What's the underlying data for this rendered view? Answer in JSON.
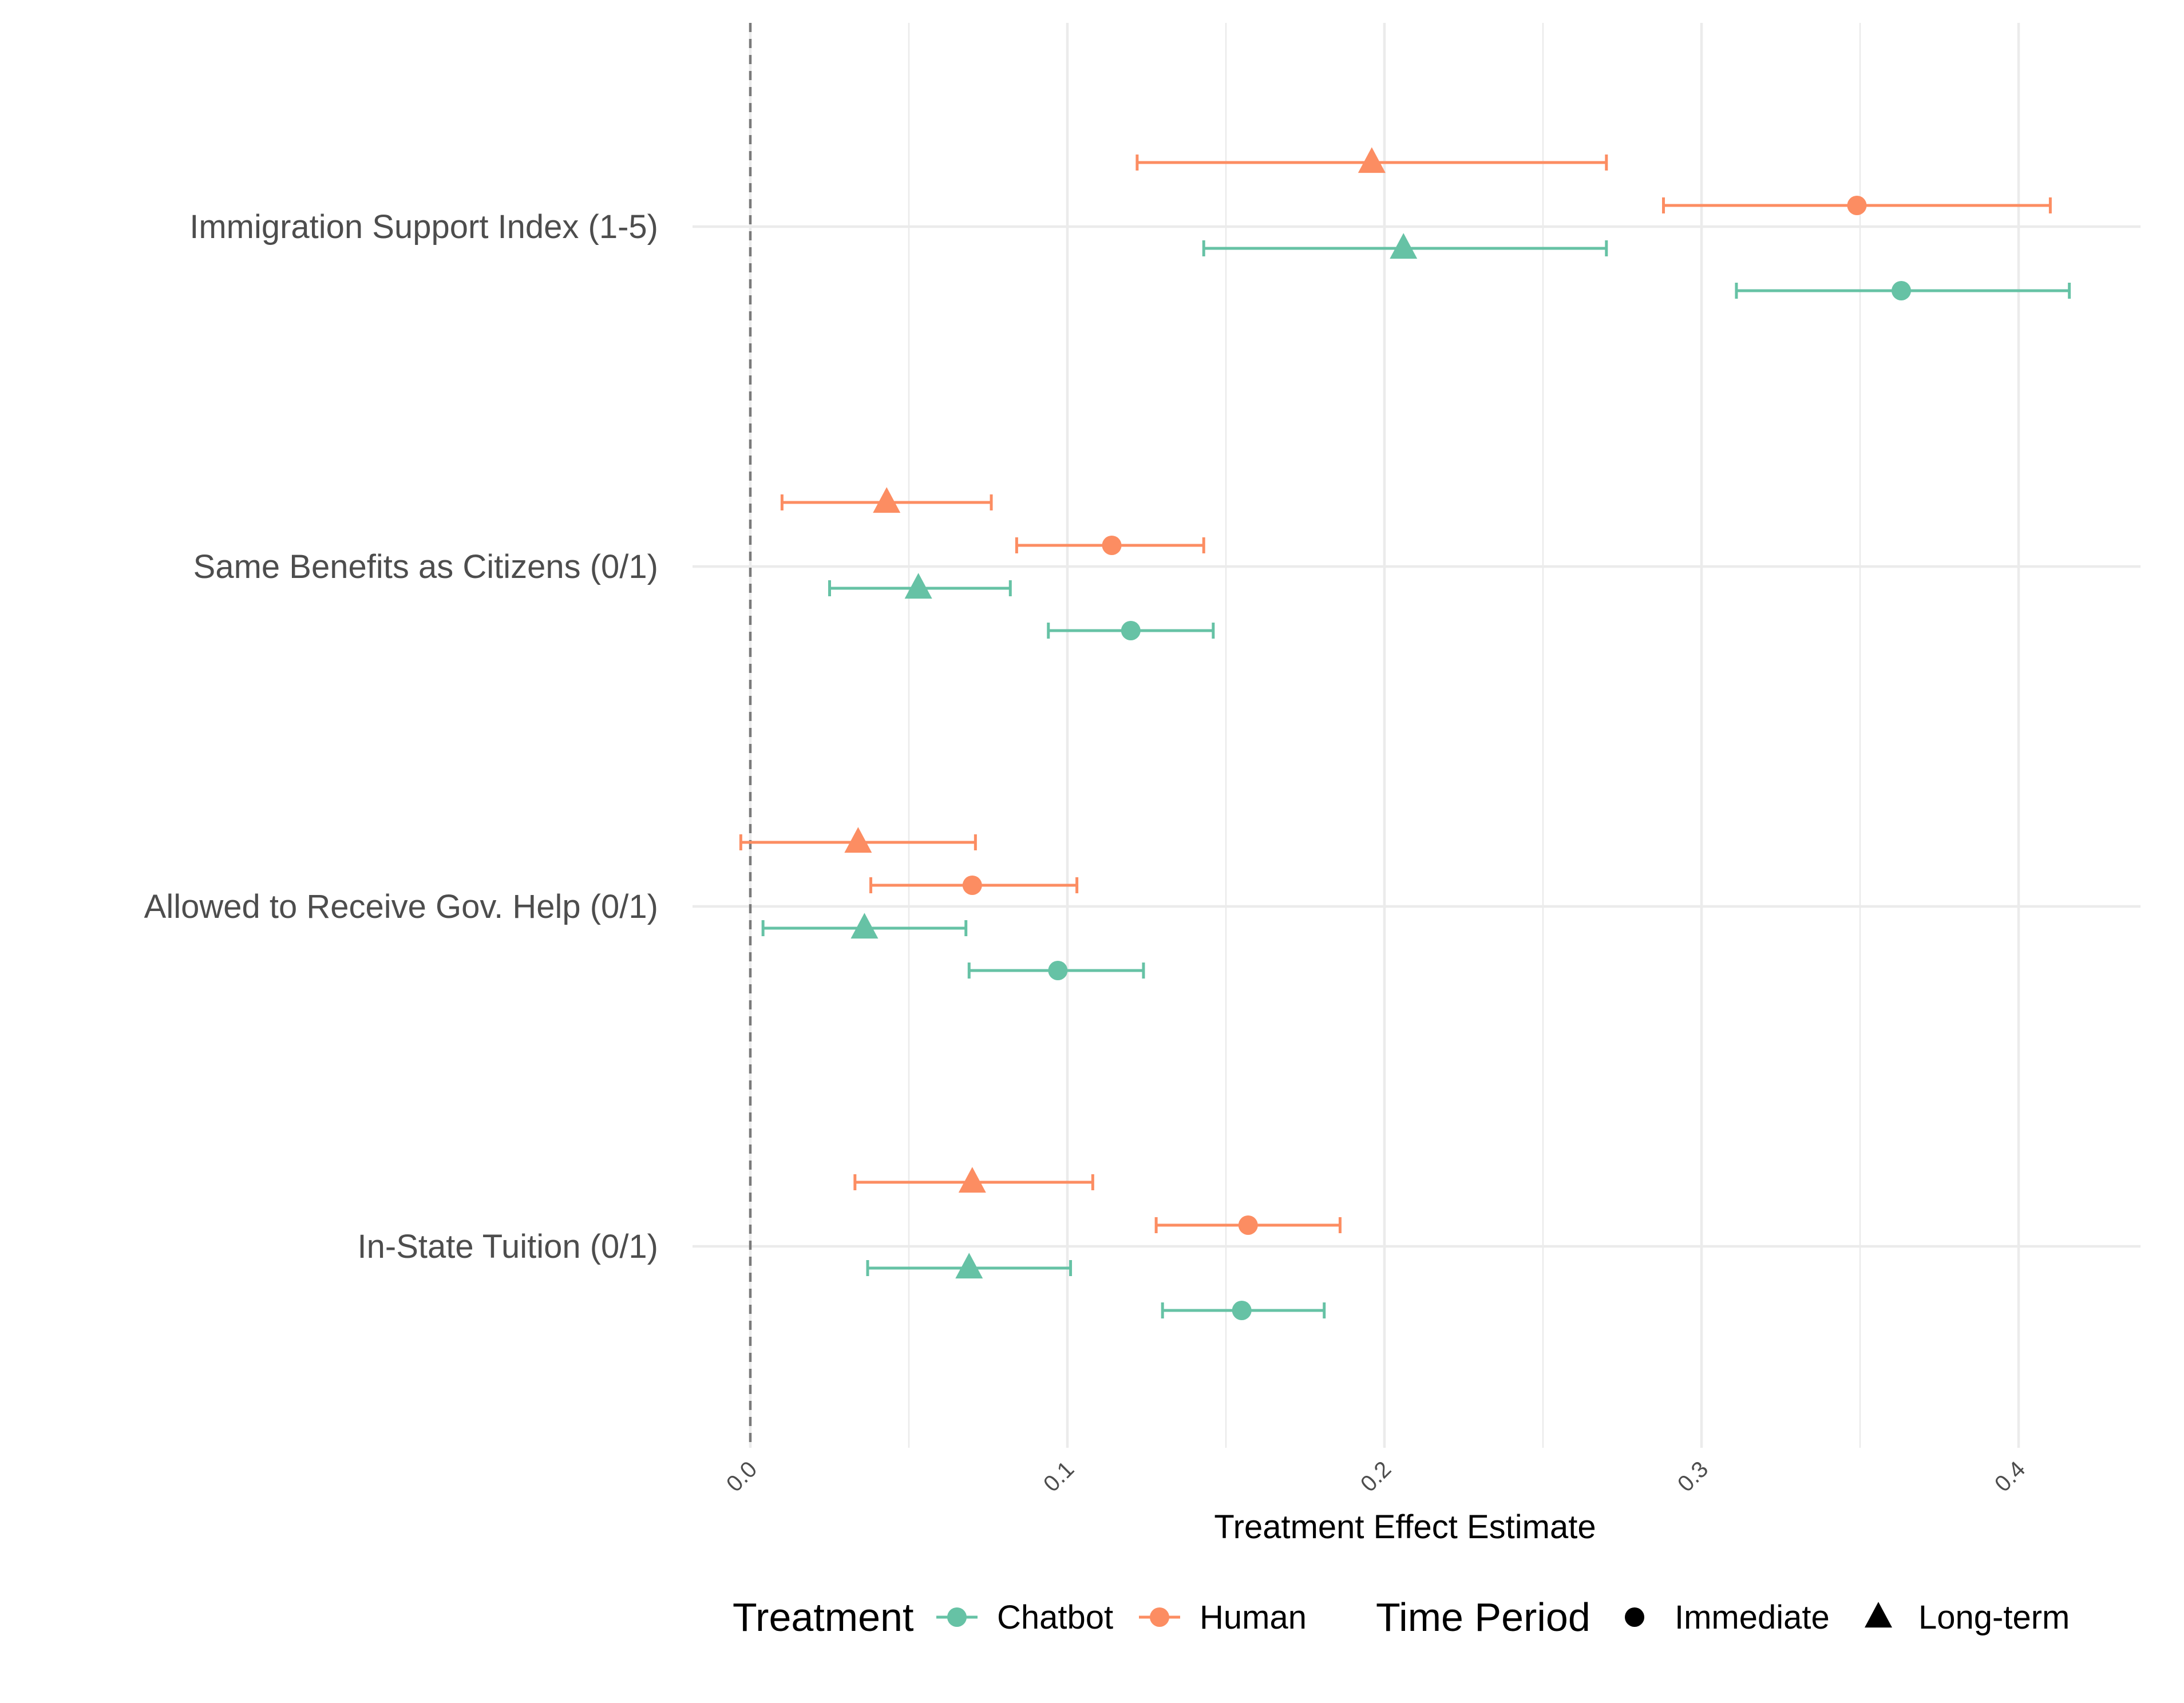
{
  "chart_data": {
    "type": "scatter",
    "subtype": "coefficient-plot-with-error-bars",
    "xlabel": "Treatment Effect Estimate",
    "xlim": [
      -0.02,
      0.438
    ],
    "x_ticks": [
      0.0,
      0.1,
      0.2,
      0.3,
      0.4
    ],
    "x_tick_labels": [
      "0.0",
      "0.1",
      "0.2",
      "0.3",
      "0.4"
    ],
    "reference_line": 0.0,
    "grid": true,
    "categories": [
      "In-State Tuition (0/1)",
      "Allowed to Receive Gov. Help (0/1)",
      "Same Benefits as Citizens (0/1)",
      "Immigration Support Index (1-5)"
    ],
    "colors": {
      "Chatbot": "#66c2a5",
      "Human": "#fc8d62"
    },
    "series": [
      {
        "name": "Human / Long-term",
        "treatment": "Human",
        "period": "Long-term",
        "estimates": [
          0.07,
          0.034,
          0.043,
          0.196
        ],
        "lower": [
          0.033,
          -0.003,
          0.01,
          0.122
        ],
        "upper": [
          0.108,
          0.071,
          0.076,
          0.27
        ]
      },
      {
        "name": "Human / Immediate",
        "treatment": "Human",
        "period": "Immediate",
        "estimates": [
          0.157,
          0.07,
          0.114,
          0.349
        ],
        "lower": [
          0.128,
          0.038,
          0.084,
          0.288
        ],
        "upper": [
          0.186,
          0.103,
          0.143,
          0.41
        ]
      },
      {
        "name": "Chatbot / Long-term",
        "treatment": "Chatbot",
        "period": "Long-term",
        "estimates": [
          0.069,
          0.036,
          0.053,
          0.206
        ],
        "lower": [
          0.037,
          0.004,
          0.025,
          0.143
        ],
        "upper": [
          0.101,
          0.068,
          0.082,
          0.27
        ]
      },
      {
        "name": "Chatbot / Immediate",
        "treatment": "Chatbot",
        "period": "Immediate",
        "estimates": [
          0.155,
          0.097,
          0.12,
          0.363
        ],
        "lower": [
          0.13,
          0.069,
          0.094,
          0.311
        ],
        "upper": [
          0.181,
          0.124,
          0.146,
          0.416
        ]
      }
    ],
    "legend": {
      "position": "bottom",
      "treatment_title": "Treatment",
      "treatment_items": [
        "Chatbot",
        "Human"
      ],
      "period_title": "Time Period",
      "period_items": [
        "Immediate",
        "Long-term"
      ]
    }
  }
}
